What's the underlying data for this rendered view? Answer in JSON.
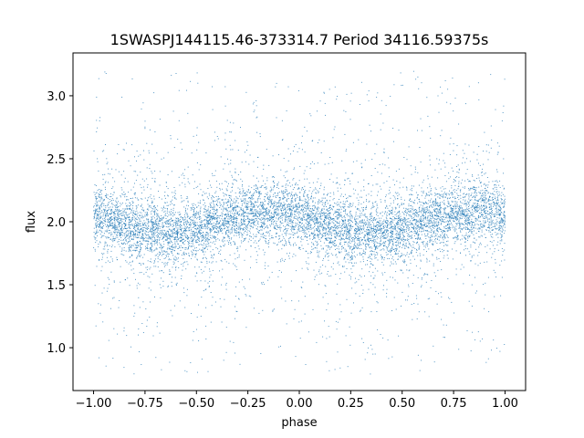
{
  "chart_data": {
    "type": "scatter",
    "title": "1SWASPJ144115.46-373314.7 Period 34116.59375s",
    "xlabel": "phase",
    "ylabel": "flux",
    "xlim": [
      -1.1,
      1.1
    ],
    "ylim": [
      0.66,
      3.34
    ],
    "x_ticks": [
      -1.0,
      -0.75,
      -0.5,
      -0.25,
      0.0,
      0.25,
      0.5,
      0.75,
      1.0
    ],
    "x_tick_labels": [
      "−1.00",
      "−0.75",
      "−0.50",
      "−0.25",
      "0.00",
      "0.25",
      "0.50",
      "0.75",
      "1.00"
    ],
    "y_ticks": [
      1.0,
      1.5,
      2.0,
      2.5,
      3.0
    ],
    "y_tick_labels": [
      "1.0",
      "1.5",
      "2.0",
      "2.5",
      "3.0"
    ],
    "grid": false,
    "marker_color": "#1f77b4",
    "series": [
      {
        "x_range": [
          -1.0,
          1.0
        ],
        "trend": [
          {
            "x": -1.0,
            "y": 2.06
          },
          {
            "x": -0.875,
            "y": 1.99
          },
          {
            "x": -0.75,
            "y": 1.93
          },
          {
            "x": -0.625,
            "y": 1.91
          },
          {
            "x": -0.5,
            "y": 1.94
          },
          {
            "x": -0.375,
            "y": 2.01
          },
          {
            "x": -0.25,
            "y": 2.07
          },
          {
            "x": -0.125,
            "y": 2.08
          },
          {
            "x": 0.0,
            "y": 2.05
          },
          {
            "x": 0.125,
            "y": 1.99
          },
          {
            "x": 0.25,
            "y": 1.93
          },
          {
            "x": 0.375,
            "y": 1.91
          },
          {
            "x": 0.5,
            "y": 1.94
          },
          {
            "x": 0.625,
            "y": 2.01
          },
          {
            "x": 0.75,
            "y": 2.07
          },
          {
            "x": 0.875,
            "y": 2.08
          },
          {
            "x": 1.0,
            "y": 2.06
          }
        ],
        "scatter_sd": 0.12,
        "outlier_range": [
          0.78,
          3.2
        ]
      }
    ]
  }
}
